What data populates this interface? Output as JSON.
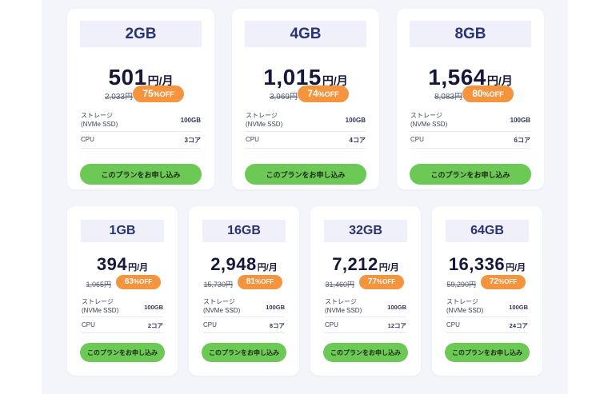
{
  "colors": {
    "page_background": "#f4f5fb",
    "card_background": "#ffffff",
    "plan_header": "#eff0f9",
    "plan_header_text": "#2b3377",
    "off_badge": "#f5943f",
    "cta_button": "#6cc955"
  },
  "plans": [
    {
      "name": "2GB",
      "price": "501",
      "price_unit": "円/月",
      "old_price": "2,033円",
      "discount_value": "75",
      "discount_suffix": "%OFF",
      "specs": {
        "storage_label": "ストレージ",
        "storage_sub": "(NVMe SSD)",
        "storage_value": "100GB",
        "cpu_label": "CPU",
        "cpu_value": "3コア"
      },
      "cta": "このプランをお申し込み"
    },
    {
      "name": "4GB",
      "price": "1,015",
      "price_unit": "円/月",
      "old_price": "3,969円",
      "discount_value": "74",
      "discount_suffix": "%OFF",
      "specs": {
        "storage_label": "ストレージ",
        "storage_sub": "(NVMe SSD)",
        "storage_value": "100GB",
        "cpu_label": "CPU",
        "cpu_value": "4コア"
      },
      "cta": "このプランをお申し込み"
    },
    {
      "name": "8GB",
      "price": "1,564",
      "price_unit": "円/月",
      "old_price": "8,083円",
      "discount_value": "80",
      "discount_suffix": "%OFF",
      "specs": {
        "storage_label": "ストレージ",
        "storage_sub": "(NVMe SSD)",
        "storage_value": "100GB",
        "cpu_label": "CPU",
        "cpu_value": "6コア"
      },
      "cta": "このプランをお申し込み"
    },
    {
      "name": "1GB",
      "price": "394",
      "price_unit": "円/月",
      "old_price": "1,065円",
      "discount_value": "63",
      "discount_suffix": "%OFF",
      "specs": {
        "storage_label": "ストレージ",
        "storage_sub": "(NVMe SSD)",
        "storage_value": "100GB",
        "cpu_label": "CPU",
        "cpu_value": "2コア"
      },
      "cta": "このプランをお申し込み"
    },
    {
      "name": "16GB",
      "price": "2,948",
      "price_unit": "円/月",
      "old_price": "15,730円",
      "discount_value": "81",
      "discount_suffix": "%OFF",
      "specs": {
        "storage_label": "ストレージ",
        "storage_sub": "(NVMe SSD)",
        "storage_value": "100GB",
        "cpu_label": "CPU",
        "cpu_value": "8コア"
      },
      "cta": "このプランをお申し込み"
    },
    {
      "name": "32GB",
      "price": "7,212",
      "price_unit": "円/月",
      "old_price": "31,460円",
      "discount_value": "77",
      "discount_suffix": "%OFF",
      "specs": {
        "storage_label": "ストレージ",
        "storage_sub": "(NVMe SSD)",
        "storage_value": "100GB",
        "cpu_label": "CPU",
        "cpu_value": "12コア"
      },
      "cta": "このプランをお申し込み"
    },
    {
      "name": "64GB",
      "price": "16,336",
      "price_unit": "円/月",
      "old_price": "59,290円",
      "discount_value": "72",
      "discount_suffix": "%OFF",
      "specs": {
        "storage_label": "ストレージ",
        "storage_sub": "(NVMe SSD)",
        "storage_value": "100GB",
        "cpu_label": "CPU",
        "cpu_value": "24コア"
      },
      "cta": "このプランをお申し込み"
    }
  ]
}
